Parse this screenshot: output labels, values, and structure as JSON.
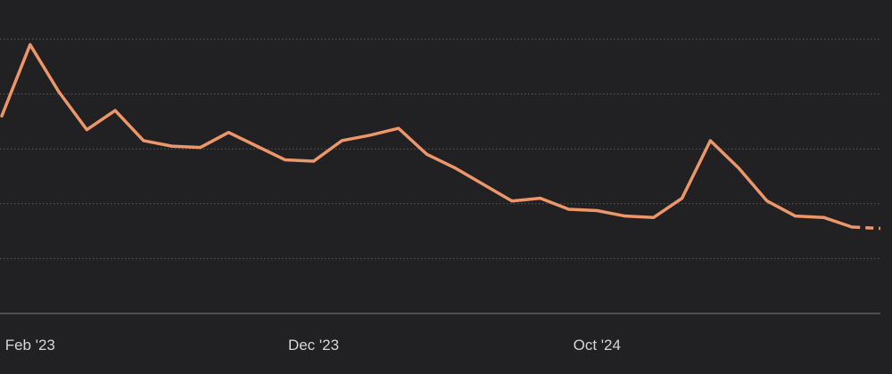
{
  "chart_data": {
    "type": "line",
    "title": "",
    "xlabel": "",
    "ylabel": "",
    "x_tick_labels": [
      "Feb '23",
      "Dec '23",
      "Oct '24"
    ],
    "x_tick_indices": [
      1,
      11,
      21
    ],
    "y_gridlines": 6,
    "grid": true,
    "legend": "none",
    "ylim": [
      0,
      100
    ],
    "series": [
      {
        "values": [
          72,
          98,
          81,
          67,
          74,
          63,
          61,
          60.5,
          66,
          61,
          56,
          55.5,
          63,
          65,
          67.5,
          58,
          53,
          47,
          41,
          42,
          38,
          37.5,
          35.5,
          35,
          42,
          63,
          53,
          41,
          35.5,
          35,
          31.5,
          31
        ],
        "projected_from_index": 30,
        "color": "#EC966A"
      }
    ]
  }
}
